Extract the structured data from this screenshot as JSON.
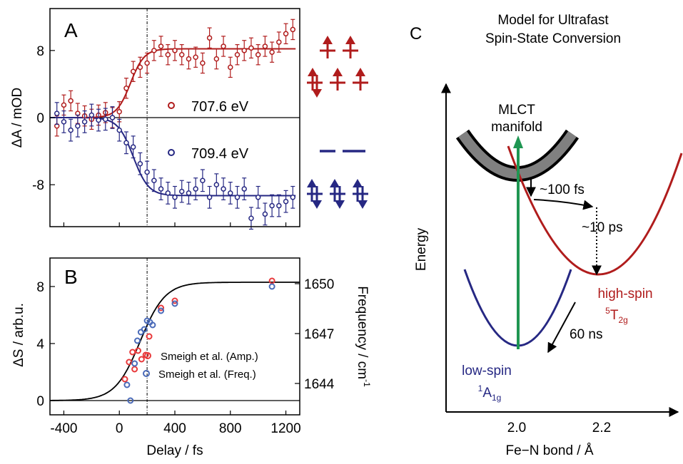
{
  "colors": {
    "red": "#b01c1c",
    "blue": "#262883",
    "green": "#1f9652",
    "amp_red": "#e8393b",
    "freq_blue": "#4a6ab8",
    "mlct_band": "#808080",
    "black": "#000000"
  },
  "panel_a": {
    "letter": "A",
    "ylabel": "ΔA / mOD",
    "legend": [
      {
        "name": "707.6 eV",
        "color_key": "red"
      },
      {
        "name": "709.4 eV",
        "color_key": "blue"
      }
    ]
  },
  "panel_b": {
    "letter": "B",
    "ylabel": "ΔS / arb.u.",
    "y2label": "Frequency / cm",
    "y2label_sup": "-1",
    "xlabel": "Delay / fs",
    "legend": [
      {
        "name": "Smeigh et al. (Amp.)",
        "color_key": "amp_red"
      },
      {
        "name": "Smeigh et al. (Freq.)",
        "color_key": "freq_blue"
      }
    ]
  },
  "panel_c": {
    "letter": "C",
    "title_lines": [
      "Model for Ultrafast",
      "Spin-State Conversion"
    ],
    "ylabel": "Energy",
    "xlabel": "Fe−N bond / Å",
    "xticks": [
      "2.0",
      "2.2"
    ],
    "mlct_lines": [
      "MLCT",
      "manifold"
    ],
    "t1": "~100 fs",
    "t2": "~10 ps",
    "t3": "60 ns",
    "hs_label": "high-spin",
    "hs_term_base": "T",
    "hs_term_pre": "5",
    "hs_term_sub": "2g",
    "ls_label": "low-spin",
    "ls_term_base": "A",
    "ls_term_pre": "1",
    "ls_term_sub": "1g"
  },
  "chart_data": [
    {
      "panel": "A",
      "type": "scatter",
      "xlim": [
        -500,
        1300
      ],
      "ylim": [
        -13,
        13
      ],
      "yticks": [
        -8,
        0,
        8
      ],
      "vline_x": 200,
      "series": [
        {
          "name": "707.6 eV",
          "color_key": "red",
          "fit": {
            "amplitude": 8.2,
            "center": 80,
            "width": 50
          },
          "x": [
            -450,
            -400,
            -350,
            -300,
            -250,
            -200,
            -150,
            -100,
            -50,
            0,
            50,
            100,
            150,
            200,
            250,
            300,
            350,
            400,
            450,
            500,
            550,
            600,
            650,
            700,
            750,
            800,
            850,
            900,
            950,
            1000,
            1050,
            1100,
            1150,
            1200,
            1250
          ],
          "y": [
            -1.0,
            1.5,
            2.0,
            0.5,
            0.2,
            -0.2,
            0.3,
            0.6,
            0.0,
            0.7,
            3.5,
            5.5,
            6.0,
            6.5,
            8.0,
            8.5,
            7.5,
            8.0,
            7.5,
            7.0,
            7.2,
            6.5,
            9.5,
            7.0,
            8.5,
            6.0,
            7.5,
            8.0,
            8.3,
            7.5,
            8.5,
            7.8,
            9.0,
            10.0,
            10.5
          ],
          "err": [
            1.2,
            1.2,
            1.2,
            1.2,
            1.2,
            1.2,
            1.2,
            1.2,
            1.2,
            1.2,
            1.2,
            1.2,
            1.2,
            1.2,
            1.2,
            1.2,
            1.2,
            1.2,
            1.2,
            1.2,
            1.2,
            1.2,
            1.2,
            1.2,
            1.2,
            1.2,
            1.2,
            1.2,
            1.2,
            1.2,
            1.2,
            1.2,
            1.2,
            1.2,
            1.2
          ]
        },
        {
          "name": "709.4 eV",
          "color_key": "blue",
          "fit": {
            "amplitude": -9.3,
            "center": 100,
            "width": 55
          },
          "x": [
            -450,
            -400,
            -350,
            -300,
            -250,
            -200,
            -150,
            -100,
            -50,
            0,
            50,
            100,
            150,
            200,
            250,
            300,
            350,
            400,
            450,
            500,
            550,
            600,
            650,
            700,
            750,
            800,
            850,
            900,
            950,
            1000,
            1050,
            1100,
            1150,
            1200,
            1250
          ],
          "y": [
            0.5,
            -0.5,
            -1.5,
            -1.0,
            -0.5,
            0.3,
            -0.3,
            -0.2,
            0.0,
            -1.5,
            -3.0,
            -3.5,
            -5.5,
            -6.5,
            -7.5,
            -8.5,
            -9.0,
            -9.5,
            -8.8,
            -9.0,
            -8.5,
            -7.5,
            -9.5,
            -8.0,
            -8.5,
            -9.0,
            -9.5,
            -8.5,
            -12.0,
            -9.5,
            -11.5,
            -10.5,
            -10.5,
            -10.0,
            -9.5
          ],
          "err": [
            1.3,
            1.3,
            1.3,
            1.3,
            1.3,
            1.3,
            1.3,
            1.3,
            1.3,
            1.3,
            1.3,
            1.3,
            1.3,
            1.3,
            1.3,
            1.3,
            1.3,
            1.3,
            1.3,
            1.3,
            1.3,
            1.3,
            1.3,
            1.3,
            1.3,
            1.3,
            1.3,
            1.3,
            1.3,
            1.3,
            1.3,
            1.3,
            1.3,
            1.3,
            1.3
          ]
        }
      ]
    },
    {
      "panel": "B",
      "type": "scatter",
      "xlabel": "Delay / fs",
      "xlim": [
        -500,
        1300
      ],
      "xticks": [
        -400,
        0,
        400,
        800,
        1200
      ],
      "ylim": [
        -1,
        10
      ],
      "yticks": [
        0,
        4,
        8
      ],
      "y2ticks": [
        {
          "label": "1644",
          "at": 1.2
        },
        {
          "label": "1647",
          "at": 4.7
        },
        {
          "label": "1650",
          "at": 8.2
        }
      ],
      "vline_x": 200,
      "fit": {
        "amplitude": 8.3,
        "center": 150,
        "width": 90
      },
      "series": [
        {
          "name": "Smeigh et al. (Amp.)",
          "color_key": "amp_red",
          "x": [
            40,
            70,
            95,
            110,
            135,
            160,
            190,
            215,
            300,
            400,
            1100
          ],
          "y": [
            1.5,
            2.7,
            3.4,
            2.2,
            3.5,
            2.9,
            3.2,
            4.5,
            6.5,
            7.0,
            8.4
          ]
        },
        {
          "name": "Smeigh et al. (Freq.)",
          "color_key": "freq_blue",
          "x": [
            55,
            80,
            110,
            130,
            155,
            180,
            200,
            220,
            240,
            300,
            400,
            1100
          ],
          "y": [
            1.1,
            0.0,
            2.6,
            4.2,
            4.8,
            5.0,
            5.6,
            5.5,
            5.3,
            6.3,
            6.8,
            8.0
          ]
        }
      ]
    }
  ]
}
